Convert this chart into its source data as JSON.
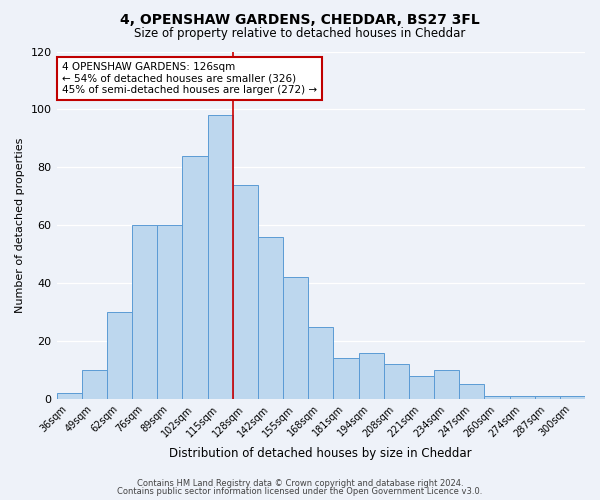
{
  "title": "4, OPENSHAW GARDENS, CHEDDAR, BS27 3FL",
  "subtitle": "Size of property relative to detached houses in Cheddar",
  "xlabel": "Distribution of detached houses by size in Cheddar",
  "ylabel": "Number of detached properties",
  "bar_labels": [
    "36sqm",
    "49sqm",
    "62sqm",
    "76sqm",
    "89sqm",
    "102sqm",
    "115sqm",
    "128sqm",
    "142sqm",
    "155sqm",
    "168sqm",
    "181sqm",
    "194sqm",
    "208sqm",
    "221sqm",
    "234sqm",
    "247sqm",
    "260sqm",
    "274sqm",
    "287sqm",
    "300sqm"
  ],
  "bar_heights": [
    2,
    10,
    30,
    60,
    60,
    84,
    98,
    74,
    56,
    42,
    25,
    14,
    16,
    12,
    8,
    10,
    5,
    1,
    1,
    1,
    1
  ],
  "bar_color": "#bdd7ee",
  "bar_edgecolor": "#5b9bd5",
  "vline_x": 6.5,
  "annotation_title": "4 OPENSHAW GARDENS: 126sqm",
  "annotation_line1": "← 54% of detached houses are smaller (326)",
  "annotation_line2": "45% of semi-detached houses are larger (272) →",
  "annotation_box_color": "#ffffff",
  "annotation_box_edgecolor": "#c00000",
  "ylim": [
    0,
    120
  ],
  "yticks": [
    0,
    20,
    40,
    60,
    80,
    100,
    120
  ],
  "background_color": "#eef2f9",
  "grid_color": "#ffffff",
  "footnote1": "Contains HM Land Registry data © Crown copyright and database right 2024.",
  "footnote2": "Contains public sector information licensed under the Open Government Licence v3.0."
}
